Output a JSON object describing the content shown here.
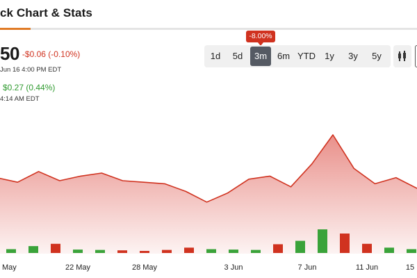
{
  "header": {
    "title": "ck Chart & Stats"
  },
  "quote": {
    "price": "50",
    "change": "-$0.06 (-0.10%)",
    "close_time": "Jun 16 4:00 PM EDT",
    "after_hours_change": "$0.27 (0.44%)",
    "after_hours_time": "4:14 AM EDT"
  },
  "ranges": [
    {
      "label": "1d",
      "active": false
    },
    {
      "label": "5d",
      "active": false
    },
    {
      "label": "3m",
      "active": true
    },
    {
      "label": "6m",
      "active": false
    },
    {
      "label": "YTD",
      "active": false
    },
    {
      "label": "1y",
      "active": false
    },
    {
      "label": "3y",
      "active": false
    },
    {
      "label": "5y",
      "active": false
    }
  ],
  "performance_badge": "-8.00%",
  "chart_type_icon": "candlestick-icon",
  "colors": {
    "line": "#d0321f",
    "area": "#e88a84",
    "up": "#3aa33a",
    "down": "#d0321f",
    "accent": "#e07b26"
  },
  "chart_data": {
    "type": "area",
    "title": "",
    "xlabel": "",
    "ylabel": "",
    "x_tick_labels": [
      "May",
      "22 May",
      "28 May",
      "3 Jun",
      "7 Jun",
      "11 Jun",
      "15"
    ],
    "price_line": [
      52,
      49,
      56,
      50,
      53,
      55,
      50,
      49,
      48,
      43,
      36,
      42,
      51,
      53,
      46,
      61,
      80,
      58,
      48,
      52,
      45
    ],
    "y_range": [
      0,
      100
    ],
    "volume": [
      {
        "value": 1.0,
        "direction": "up"
      },
      {
        "value": 1.8,
        "direction": "up"
      },
      {
        "value": 2.4,
        "direction": "down"
      },
      {
        "value": 0.9,
        "direction": "up"
      },
      {
        "value": 0.8,
        "direction": "up"
      },
      {
        "value": 0.7,
        "direction": "down"
      },
      {
        "value": 0.5,
        "direction": "down"
      },
      {
        "value": 0.8,
        "direction": "down"
      },
      {
        "value": 1.4,
        "direction": "down"
      },
      {
        "value": 1.0,
        "direction": "up"
      },
      {
        "value": 0.9,
        "direction": "up"
      },
      {
        "value": 0.8,
        "direction": "up"
      },
      {
        "value": 2.3,
        "direction": "down"
      },
      {
        "value": 3.2,
        "direction": "up"
      },
      {
        "value": 6.2,
        "direction": "up"
      },
      {
        "value": 5.1,
        "direction": "down"
      },
      {
        "value": 2.4,
        "direction": "down"
      },
      {
        "value": 1.4,
        "direction": "up"
      },
      {
        "value": 1.0,
        "direction": "up"
      }
    ],
    "grid": false,
    "legend": "none"
  }
}
